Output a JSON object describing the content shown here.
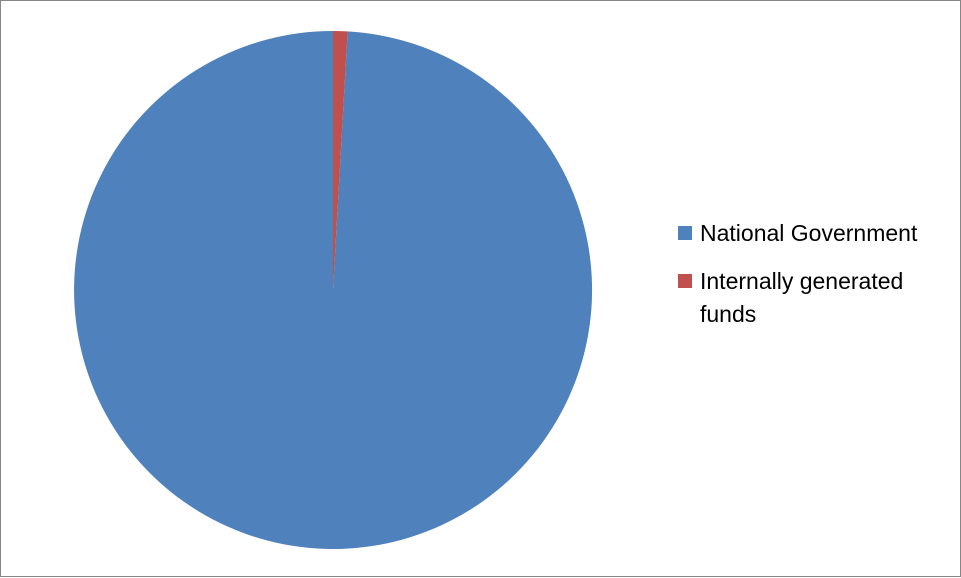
{
  "chart_data": {
    "type": "pie",
    "title": "",
    "series": [
      {
        "name": "National Government",
        "value": 99.1,
        "color": "#4F81BD"
      },
      {
        "name": "Internally generated funds",
        "value": 0.9,
        "color": "#C0504D"
      }
    ],
    "start_angle_deg": 0,
    "direction": "counter-clockwise",
    "legend_position": "right"
  }
}
